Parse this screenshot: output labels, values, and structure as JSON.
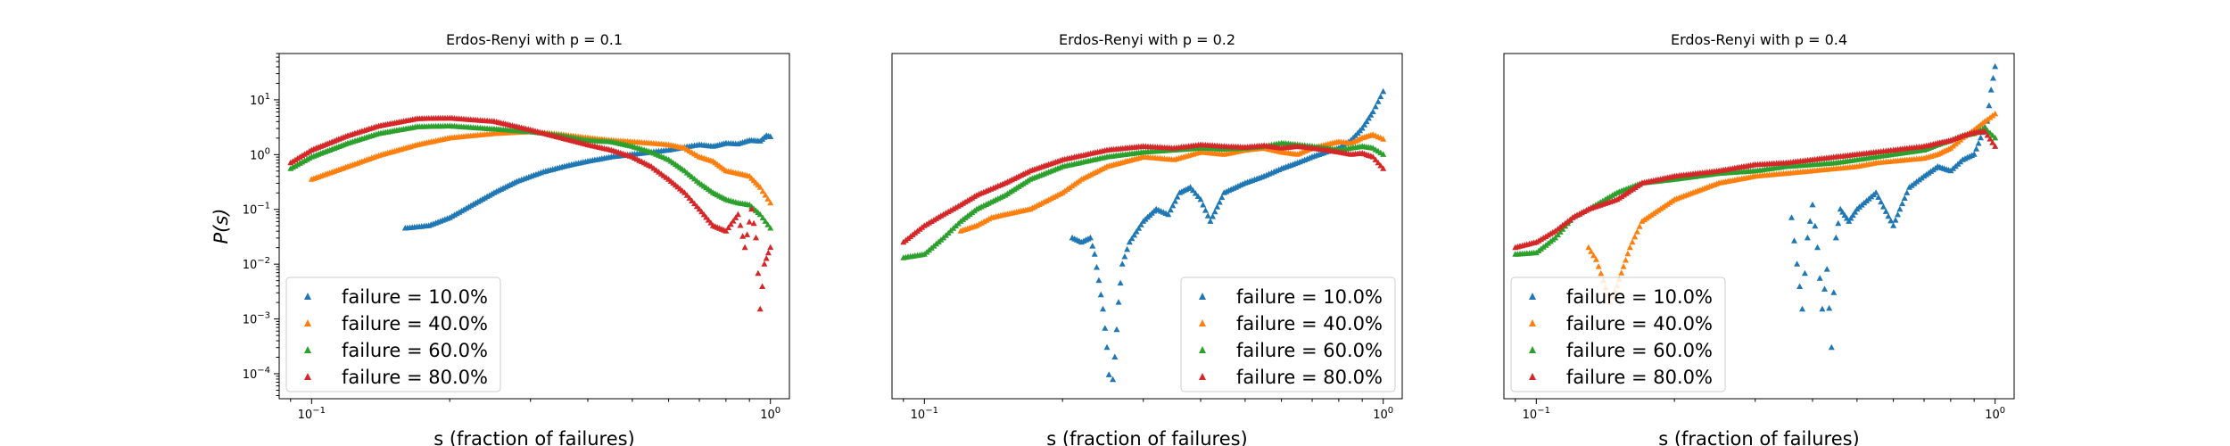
{
  "chart_data": [
    {
      "type": "scatter",
      "title": "Erdos-Renyi with p = 0.1",
      "xlabel": "s (fraction of failures)",
      "ylabel": "P(s)",
      "xscale": "log",
      "yscale": "log",
      "xlim": [
        0.085,
        1.1
      ],
      "ylim": [
        3.5e-05,
        70
      ],
      "xticks": [
        {
          "value": 0.1,
          "label": "10^-1"
        },
        {
          "value": 1,
          "label": "10^0"
        }
      ],
      "yticks": [
        {
          "value": 0.0001,
          "label": "10^-4"
        },
        {
          "value": 0.001,
          "label": "10^-3"
        },
        {
          "value": 0.01,
          "label": "10^-2"
        },
        {
          "value": 0.1,
          "label": "10^-1"
        },
        {
          "value": 1,
          "label": "10^0"
        },
        {
          "value": 10,
          "label": "10^1"
        }
      ],
      "legend_position": "lower-left",
      "series": [
        {
          "name": "failure = 10.0%",
          "color": "#1f77b4",
          "x": [
            0.16,
            0.18,
            0.2,
            0.22,
            0.25,
            0.28,
            0.32,
            0.36,
            0.4,
            0.45,
            0.5,
            0.55,
            0.6,
            0.65,
            0.7,
            0.75,
            0.8,
            0.85,
            0.9,
            0.95,
            0.98,
            1.0
          ],
          "y": [
            0.045,
            0.05,
            0.07,
            0.11,
            0.2,
            0.32,
            0.48,
            0.62,
            0.75,
            0.9,
            1.0,
            1.1,
            1.2,
            1.35,
            1.5,
            1.4,
            1.6,
            1.55,
            1.8,
            1.75,
            2.2,
            2.1
          ]
        },
        {
          "name": "failure = 40.0%",
          "color": "#ff7f0e",
          "x": [
            0.1,
            0.12,
            0.14,
            0.17,
            0.2,
            0.25,
            0.3,
            0.35,
            0.4,
            0.45,
            0.5,
            0.55,
            0.6,
            0.65,
            0.7,
            0.75,
            0.8,
            0.85,
            0.9,
            0.95,
            1.0
          ],
          "y": [
            0.35,
            0.6,
            0.95,
            1.5,
            2.0,
            2.4,
            2.6,
            2.3,
            2.0,
            1.8,
            1.7,
            1.6,
            1.5,
            1.3,
            0.9,
            0.75,
            0.5,
            0.45,
            0.4,
            0.25,
            0.13
          ]
        },
        {
          "name": "failure = 60.0%",
          "color": "#2ca02c",
          "x": [
            0.09,
            0.1,
            0.12,
            0.14,
            0.17,
            0.2,
            0.25,
            0.3,
            0.35,
            0.4,
            0.45,
            0.5,
            0.55,
            0.6,
            0.65,
            0.7,
            0.75,
            0.8,
            0.85,
            0.9,
            0.95,
            1.0
          ],
          "y": [
            0.55,
            0.9,
            1.6,
            2.4,
            3.2,
            3.3,
            2.9,
            2.6,
            2.2,
            1.8,
            1.7,
            1.4,
            1.1,
            0.8,
            0.5,
            0.3,
            0.2,
            0.15,
            0.13,
            0.12,
            0.08,
            0.045
          ]
        },
        {
          "name": "failure = 80.0%",
          "color": "#d62728",
          "x": [
            0.09,
            0.1,
            0.12,
            0.14,
            0.17,
            0.2,
            0.25,
            0.3,
            0.35,
            0.4,
            0.45,
            0.5,
            0.55,
            0.6,
            0.65,
            0.7,
            0.75,
            0.8,
            0.85,
            0.88,
            0.91,
            0.93,
            0.95,
            0.97,
            1.0
          ],
          "y": [
            0.7,
            1.2,
            2.2,
            3.3,
            4.5,
            4.6,
            4.0,
            2.8,
            2.0,
            1.5,
            1.2,
            0.9,
            0.6,
            0.35,
            0.2,
            0.1,
            0.05,
            0.04,
            0.08,
            0.02,
            0.1,
            0.03,
            0.0015,
            0.01,
            0.02
          ]
        }
      ]
    },
    {
      "type": "scatter",
      "title": "Erdos-Renyi with p = 0.2",
      "xlabel": "s (fraction of failures)",
      "ylabel": "",
      "xscale": "log",
      "yscale": "log",
      "xlim": [
        0.085,
        1.1
      ],
      "ylim": [
        3.5e-05,
        70
      ],
      "xticks": [
        {
          "value": 0.1,
          "label": "10^-1"
        },
        {
          "value": 1,
          "label": "10^0"
        }
      ],
      "yticks": [],
      "legend_position": "lower-right",
      "series": [
        {
          "name": "failure = 10.0%",
          "color": "#1f77b4",
          "x": [
            0.21,
            0.22,
            0.23,
            0.235,
            0.24,
            0.245,
            0.25,
            0.255,
            0.26,
            0.265,
            0.27,
            0.28,
            0.3,
            0.32,
            0.34,
            0.36,
            0.38,
            0.4,
            0.42,
            0.45,
            0.5,
            0.55,
            0.6,
            0.65,
            0.7,
            0.75,
            0.8,
            0.85,
            0.9,
            0.95,
            1.0
          ],
          "y": [
            0.03,
            0.025,
            0.03,
            0.015,
            0.005,
            0.0015,
            0.0003,
            3e-05,
            0.0002,
            0.002,
            0.01,
            0.025,
            0.06,
            0.1,
            0.08,
            0.2,
            0.25,
            0.15,
            0.06,
            0.2,
            0.3,
            0.4,
            0.55,
            0.7,
            0.9,
            1.1,
            1.3,
            1.8,
            3.0,
            6.0,
            14.0
          ]
        },
        {
          "name": "failure = 40.0%",
          "color": "#ff7f0e",
          "x": [
            0.12,
            0.13,
            0.14,
            0.15,
            0.17,
            0.2,
            0.22,
            0.25,
            0.3,
            0.35,
            0.4,
            0.45,
            0.5,
            0.55,
            0.6,
            0.65,
            0.7,
            0.75,
            0.8,
            0.85,
            0.9,
            0.95,
            1.0
          ],
          "y": [
            0.04,
            0.05,
            0.07,
            0.08,
            0.1,
            0.2,
            0.35,
            0.6,
            0.9,
            0.8,
            1.1,
            1.0,
            1.2,
            1.3,
            1.1,
            1.0,
            1.3,
            1.5,
            1.7,
            1.6,
            2.0,
            2.3,
            1.9
          ]
        },
        {
          "name": "failure = 60.0%",
          "color": "#2ca02c",
          "x": [
            0.09,
            0.1,
            0.11,
            0.12,
            0.13,
            0.15,
            0.17,
            0.2,
            0.25,
            0.3,
            0.35,
            0.4,
            0.45,
            0.5,
            0.55,
            0.6,
            0.65,
            0.7,
            0.75,
            0.8,
            0.85,
            0.9,
            0.95,
            1.0
          ],
          "y": [
            0.013,
            0.015,
            0.03,
            0.06,
            0.1,
            0.18,
            0.35,
            0.6,
            0.9,
            1.1,
            1.2,
            1.3,
            1.25,
            1.3,
            1.4,
            1.6,
            1.5,
            1.4,
            1.3,
            1.2,
            1.3,
            1.4,
            1.3,
            1.0
          ]
        },
        {
          "name": "failure = 80.0%",
          "color": "#d62728",
          "x": [
            0.09,
            0.1,
            0.11,
            0.12,
            0.13,
            0.15,
            0.17,
            0.2,
            0.25,
            0.3,
            0.35,
            0.4,
            0.45,
            0.5,
            0.55,
            0.6,
            0.65,
            0.7,
            0.75,
            0.8,
            0.85,
            0.9,
            0.95,
            1.0
          ],
          "y": [
            0.025,
            0.05,
            0.08,
            0.12,
            0.18,
            0.3,
            0.5,
            0.8,
            1.2,
            1.4,
            1.3,
            1.5,
            1.4,
            1.35,
            1.45,
            1.3,
            1.4,
            1.3,
            1.2,
            1.1,
            1.0,
            1.05,
            0.9,
            0.55
          ]
        }
      ]
    },
    {
      "type": "scatter",
      "title": "Erdos-Renyi with p = 0.4",
      "xlabel": "s (fraction of failures)",
      "ylabel": "",
      "xscale": "log",
      "yscale": "log",
      "xlim": [
        0.085,
        1.1
      ],
      "ylim": [
        3.5e-05,
        70
      ],
      "xticks": [
        {
          "value": 0.1,
          "label": "10^-1"
        },
        {
          "value": 1,
          "label": "10^0"
        }
      ],
      "yticks": [],
      "legend_position": "lower-left",
      "series": [
        {
          "name": "failure = 10.0%",
          "color": "#1f77b4",
          "x": [
            0.36,
            0.37,
            0.38,
            0.39,
            0.4,
            0.41,
            0.42,
            0.43,
            0.44,
            0.45,
            0.46,
            0.48,
            0.5,
            0.55,
            0.6,
            0.62,
            0.65,
            0.7,
            0.75,
            0.8,
            0.85,
            0.9,
            0.93,
            0.96,
            0.98,
            1.0
          ],
          "y": [
            0.07,
            0.01,
            0.0015,
            0.03,
            0.12,
            0.02,
            0.0015,
            0.008,
            0.0003,
            0.03,
            0.1,
            0.06,
            0.1,
            0.2,
            0.05,
            0.1,
            0.25,
            0.4,
            0.6,
            0.5,
            0.8,
            1.0,
            2.0,
            4.0,
            15.0,
            40.0
          ]
        },
        {
          "name": "failure = 40.0%",
          "color": "#ff7f0e",
          "x": [
            0.13,
            0.135,
            0.14,
            0.145,
            0.15,
            0.16,
            0.17,
            0.2,
            0.25,
            0.3,
            0.35,
            0.4,
            0.45,
            0.5,
            0.55,
            0.6,
            0.65,
            0.7,
            0.75,
            0.8,
            0.85,
            0.9,
            0.95,
            1.0
          ],
          "y": [
            0.02,
            0.012,
            0.005,
            0.002,
            0.004,
            0.02,
            0.06,
            0.15,
            0.3,
            0.4,
            0.45,
            0.5,
            0.55,
            0.6,
            0.7,
            0.75,
            0.8,
            0.85,
            1.0,
            1.3,
            2.0,
            2.8,
            4.0,
            5.5
          ]
        },
        {
          "name": "failure = 60.0%",
          "color": "#2ca02c",
          "x": [
            0.09,
            0.1,
            0.11,
            0.12,
            0.13,
            0.15,
            0.17,
            0.2,
            0.25,
            0.3,
            0.35,
            0.4,
            0.45,
            0.5,
            0.55,
            0.6,
            0.65,
            0.7,
            0.75,
            0.8,
            0.85,
            0.9,
            0.95,
            1.0
          ],
          "y": [
            0.015,
            0.016,
            0.03,
            0.07,
            0.1,
            0.2,
            0.3,
            0.35,
            0.45,
            0.5,
            0.6,
            0.65,
            0.7,
            0.8,
            0.9,
            1.0,
            1.1,
            1.2,
            1.5,
            1.8,
            2.2,
            2.4,
            3.0,
            2.0
          ]
        },
        {
          "name": "failure = 80.0%",
          "color": "#d62728",
          "x": [
            0.09,
            0.1,
            0.11,
            0.12,
            0.13,
            0.15,
            0.17,
            0.2,
            0.25,
            0.3,
            0.35,
            0.4,
            0.45,
            0.5,
            0.55,
            0.6,
            0.65,
            0.7,
            0.75,
            0.8,
            0.85,
            0.9,
            0.95,
            1.0
          ],
          "y": [
            0.02,
            0.025,
            0.04,
            0.07,
            0.1,
            0.15,
            0.3,
            0.4,
            0.5,
            0.65,
            0.7,
            0.8,
            0.9,
            1.0,
            1.1,
            1.2,
            1.3,
            1.4,
            1.6,
            1.8,
            2.2,
            2.5,
            2.6,
            1.4
          ]
        }
      ]
    }
  ]
}
